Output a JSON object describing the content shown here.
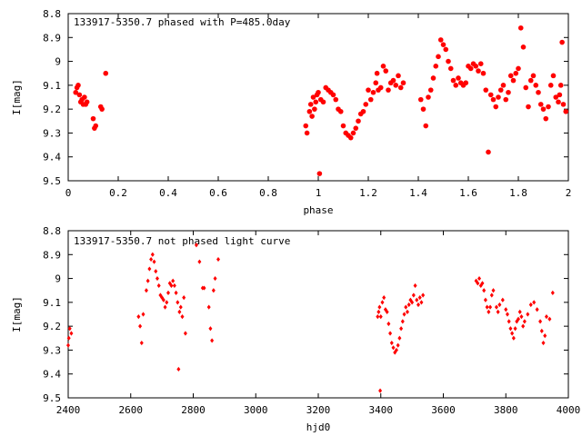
{
  "colors": {
    "series": "#ff0000",
    "axis": "#000000",
    "background": "#ffffff"
  },
  "chart_data": [
    {
      "type": "scatter",
      "title": "133917-5350.7 phased with P=485.0day",
      "xlabel": "phase",
      "ylabel": "I[mag]",
      "xlim": [
        0,
        2
      ],
      "ylim": [
        8.8,
        9.5
      ],
      "y_inverted": true,
      "grid": false,
      "legend": "none",
      "marker": "filled-circle-large",
      "xticks": [
        "0",
        "0.2",
        "0.4",
        "0.6",
        "0.8",
        "1",
        "1.2",
        "1.4",
        "1.6",
        "1.8",
        "2"
      ],
      "yticks": [
        "8.8",
        "8.9",
        "9",
        "9.1",
        "9.2",
        "9.3",
        "9.4",
        "9.5"
      ],
      "points": [
        [
          0.03,
          9.13
        ],
        [
          0.035,
          9.11
        ],
        [
          0.04,
          9.1
        ],
        [
          0.045,
          9.14
        ],
        [
          0.05,
          9.17
        ],
        [
          0.055,
          9.16
        ],
        [
          0.06,
          9.18
        ],
        [
          0.065,
          9.15
        ],
        [
          0.07,
          9.18
        ],
        [
          0.075,
          9.17
        ],
        [
          0.1,
          9.24
        ],
        [
          0.105,
          9.28
        ],
        [
          0.11,
          9.27
        ],
        [
          0.13,
          9.19
        ],
        [
          0.135,
          9.2
        ],
        [
          0.15,
          9.05
        ],
        [
          0.95,
          9.27
        ],
        [
          0.955,
          9.3
        ],
        [
          0.965,
          9.21
        ],
        [
          0.97,
          9.18
        ],
        [
          0.975,
          9.23
        ],
        [
          0.98,
          9.15
        ],
        [
          0.985,
          9.2
        ],
        [
          0.99,
          9.17
        ],
        [
          0.995,
          9.14
        ],
        [
          1.0,
          9.13
        ],
        [
          1.005,
          9.47
        ],
        [
          1.01,
          9.16
        ],
        [
          1.02,
          9.17
        ],
        [
          1.03,
          9.11
        ],
        [
          1.04,
          9.12
        ],
        [
          1.05,
          9.13
        ],
        [
          1.06,
          9.14
        ],
        [
          1.07,
          9.16
        ],
        [
          1.08,
          9.2
        ],
        [
          1.09,
          9.21
        ],
        [
          1.1,
          9.27
        ],
        [
          1.11,
          9.3
        ],
        [
          1.12,
          9.31
        ],
        [
          1.13,
          9.32
        ],
        [
          1.14,
          9.3
        ],
        [
          1.15,
          9.28
        ],
        [
          1.16,
          9.25
        ],
        [
          1.17,
          9.22
        ],
        [
          1.18,
          9.21
        ],
        [
          1.19,
          9.18
        ],
        [
          1.2,
          9.12
        ],
        [
          1.21,
          9.16
        ],
        [
          1.22,
          9.13
        ],
        [
          1.23,
          9.09
        ],
        [
          1.235,
          9.05
        ],
        [
          1.24,
          9.12
        ],
        [
          1.25,
          9.11
        ],
        [
          1.26,
          9.02
        ],
        [
          1.27,
          9.04
        ],
        [
          1.28,
          9.12
        ],
        [
          1.29,
          9.09
        ],
        [
          1.3,
          9.08
        ],
        [
          1.31,
          9.1
        ],
        [
          1.32,
          9.06
        ],
        [
          1.33,
          9.11
        ],
        [
          1.34,
          9.09
        ],
        [
          1.41,
          9.16
        ],
        [
          1.42,
          9.2
        ],
        [
          1.43,
          9.27
        ],
        [
          1.44,
          9.15
        ],
        [
          1.45,
          9.12
        ],
        [
          1.46,
          9.07
        ],
        [
          1.47,
          9.02
        ],
        [
          1.48,
          8.98
        ],
        [
          1.49,
          8.91
        ],
        [
          1.5,
          8.93
        ],
        [
          1.51,
          8.95
        ],
        [
          1.52,
          9.0
        ],
        [
          1.53,
          9.03
        ],
        [
          1.54,
          9.08
        ],
        [
          1.55,
          9.1
        ],
        [
          1.56,
          9.07
        ],
        [
          1.57,
          9.09
        ],
        [
          1.58,
          9.1
        ],
        [
          1.59,
          9.09
        ],
        [
          1.6,
          9.02
        ],
        [
          1.61,
          9.03
        ],
        [
          1.62,
          9.01
        ],
        [
          1.63,
          9.02
        ],
        [
          1.64,
          9.04
        ],
        [
          1.65,
          9.01
        ],
        [
          1.66,
          9.05
        ],
        [
          1.67,
          9.12
        ],
        [
          1.68,
          9.38
        ],
        [
          1.69,
          9.14
        ],
        [
          1.7,
          9.16
        ],
        [
          1.71,
          9.19
        ],
        [
          1.72,
          9.15
        ],
        [
          1.73,
          9.12
        ],
        [
          1.74,
          9.1
        ],
        [
          1.75,
          9.16
        ],
        [
          1.76,
          9.13
        ],
        [
          1.77,
          9.06
        ],
        [
          1.78,
          9.08
        ],
        [
          1.79,
          9.05
        ],
        [
          1.8,
          9.03
        ],
        [
          1.81,
          8.86
        ],
        [
          1.82,
          8.94
        ],
        [
          1.83,
          9.11
        ],
        [
          1.84,
          9.19
        ],
        [
          1.85,
          9.08
        ],
        [
          1.86,
          9.06
        ],
        [
          1.87,
          9.1
        ],
        [
          1.88,
          9.13
        ],
        [
          1.89,
          9.18
        ],
        [
          1.9,
          9.2
        ],
        [
          1.91,
          9.24
        ],
        [
          1.92,
          9.19
        ],
        [
          1.93,
          9.1
        ],
        [
          1.94,
          9.06
        ],
        [
          1.95,
          9.15
        ],
        [
          1.96,
          9.17
        ],
        [
          1.965,
          9.14
        ],
        [
          1.97,
          9.1
        ],
        [
          1.975,
          8.92
        ],
        [
          1.98,
          9.18
        ],
        [
          1.99,
          9.21
        ]
      ]
    },
    {
      "type": "scatter",
      "title": "133917-5350.7 not phased light curve",
      "xlabel": "hjd0",
      "ylabel": "I[mag]",
      "xlim": [
        2400,
        4000
      ],
      "ylim": [
        8.8,
        9.5
      ],
      "y_inverted": true,
      "grid": false,
      "legend": "none",
      "marker": "filled-diamond-small",
      "xticks": [
        "2400",
        "2600",
        "2800",
        "3000",
        "3200",
        "3400",
        "3600",
        "3800",
        "4000"
      ],
      "yticks": [
        "8.8",
        "8.9",
        "9",
        "9.1",
        "9.2",
        "9.3",
        "9.4",
        "9.5"
      ],
      "points": [
        [
          2400,
          9.28
        ],
        [
          2402,
          9.25
        ],
        [
          2405,
          9.21
        ],
        [
          2410,
          9.23
        ],
        [
          2625,
          9.16
        ],
        [
          2630,
          9.2
        ],
        [
          2635,
          9.27
        ],
        [
          2640,
          9.15
        ],
        [
          2650,
          9.05
        ],
        [
          2655,
          9.01
        ],
        [
          2660,
          8.96
        ],
        [
          2665,
          8.92
        ],
        [
          2670,
          8.9
        ],
        [
          2675,
          8.93
        ],
        [
          2680,
          8.97
        ],
        [
          2685,
          9.0
        ],
        [
          2690,
          9.03
        ],
        [
          2695,
          9.07
        ],
        [
          2700,
          9.08
        ],
        [
          2705,
          9.09
        ],
        [
          2710,
          9.12
        ],
        [
          2715,
          9.1
        ],
        [
          2720,
          9.06
        ],
        [
          2725,
          9.02
        ],
        [
          2730,
          9.03
        ],
        [
          2735,
          9.01
        ],
        [
          2740,
          9.03
        ],
        [
          2745,
          9.06
        ],
        [
          2750,
          9.1
        ],
        [
          2753,
          9.38
        ],
        [
          2756,
          9.14
        ],
        [
          2760,
          9.12
        ],
        [
          2765,
          9.16
        ],
        [
          2770,
          9.08
        ],
        [
          2775,
          9.23
        ],
        [
          2810,
          8.86
        ],
        [
          2820,
          8.93
        ],
        [
          2830,
          9.04
        ],
        [
          2835,
          9.04
        ],
        [
          2850,
          9.12
        ],
        [
          2855,
          9.21
        ],
        [
          2860,
          9.26
        ],
        [
          2865,
          9.05
        ],
        [
          2870,
          9.0
        ],
        [
          2880,
          8.92
        ],
        [
          3390,
          9.16
        ],
        [
          3393,
          9.14
        ],
        [
          3396,
          9.12
        ],
        [
          3398,
          9.47
        ],
        [
          3400,
          9.16
        ],
        [
          3405,
          9.1
        ],
        [
          3410,
          9.08
        ],
        [
          3415,
          9.13
        ],
        [
          3420,
          9.14
        ],
        [
          3425,
          9.19
        ],
        [
          3430,
          9.23
        ],
        [
          3435,
          9.27
        ],
        [
          3440,
          9.29
        ],
        [
          3445,
          9.31
        ],
        [
          3450,
          9.3
        ],
        [
          3455,
          9.28
        ],
        [
          3460,
          9.25
        ],
        [
          3465,
          9.21
        ],
        [
          3470,
          9.18
        ],
        [
          3475,
          9.15
        ],
        [
          3480,
          9.12
        ],
        [
          3485,
          9.14
        ],
        [
          3490,
          9.11
        ],
        [
          3495,
          9.09
        ],
        [
          3500,
          9.1
        ],
        [
          3505,
          9.07
        ],
        [
          3510,
          9.03
        ],
        [
          3515,
          9.09
        ],
        [
          3520,
          9.11
        ],
        [
          3525,
          9.08
        ],
        [
          3530,
          9.1
        ],
        [
          3535,
          9.07
        ],
        [
          3705,
          9.01
        ],
        [
          3710,
          9.02
        ],
        [
          3715,
          9.0
        ],
        [
          3720,
          9.03
        ],
        [
          3725,
          9.02
        ],
        [
          3730,
          9.05
        ],
        [
          3735,
          9.09
        ],
        [
          3740,
          9.12
        ],
        [
          3745,
          9.14
        ],
        [
          3750,
          9.12
        ],
        [
          3755,
          9.07
        ],
        [
          3760,
          9.05
        ],
        [
          3770,
          9.12
        ],
        [
          3775,
          9.14
        ],
        [
          3780,
          9.11
        ],
        [
          3790,
          9.09
        ],
        [
          3800,
          9.13
        ],
        [
          3805,
          9.15
        ],
        [
          3810,
          9.18
        ],
        [
          3815,
          9.21
        ],
        [
          3820,
          9.23
        ],
        [
          3825,
          9.25
        ],
        [
          3830,
          9.21
        ],
        [
          3835,
          9.18
        ],
        [
          3840,
          9.17
        ],
        [
          3845,
          9.14
        ],
        [
          3850,
          9.16
        ],
        [
          3855,
          9.2
        ],
        [
          3860,
          9.18
        ],
        [
          3870,
          9.15
        ],
        [
          3880,
          9.11
        ],
        [
          3890,
          9.1
        ],
        [
          3900,
          9.13
        ],
        [
          3910,
          9.18
        ],
        [
          3915,
          9.22
        ],
        [
          3920,
          9.27
        ],
        [
          3925,
          9.24
        ],
        [
          3930,
          9.16
        ],
        [
          3940,
          9.17
        ],
        [
          3950,
          9.06
        ]
      ]
    }
  ]
}
